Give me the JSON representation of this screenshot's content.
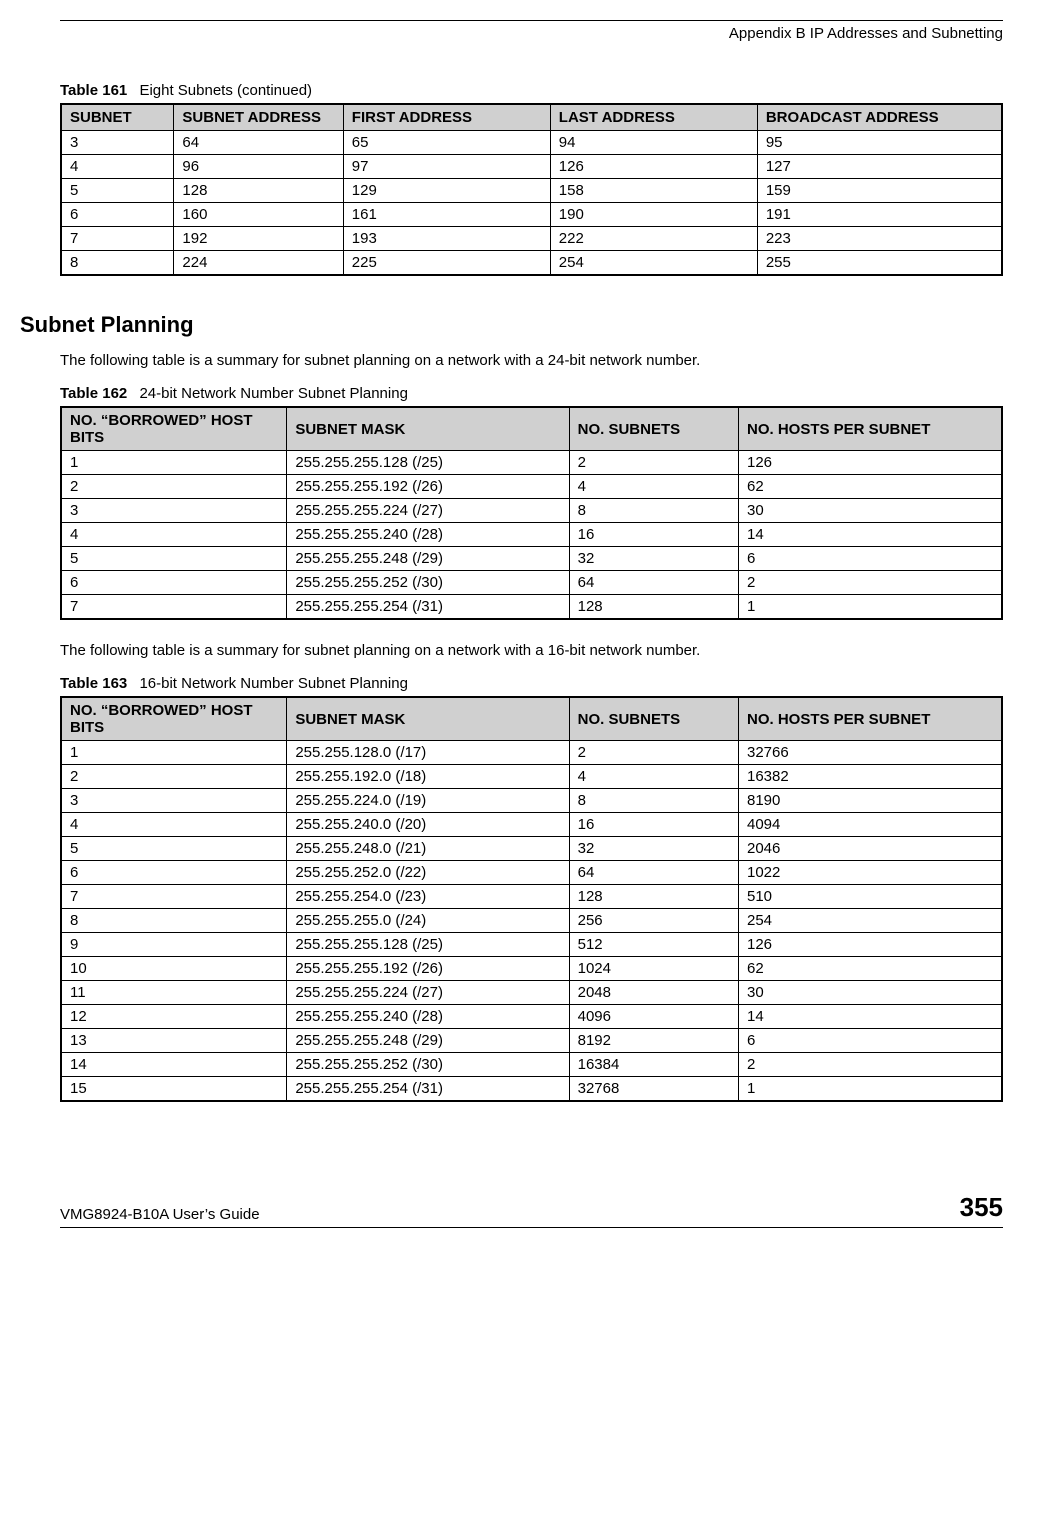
{
  "header": {
    "title": "Appendix B IP Addresses and Subnetting"
  },
  "table161": {
    "label": "Table 161",
    "title": "Eight Subnets (continued)",
    "columns": [
      "SUBNET",
      "SUBNET ADDRESS",
      "FIRST ADDRESS",
      "LAST ADDRESS",
      "BROADCAST ADDRESS"
    ],
    "rows": [
      [
        "3",
        "64",
        "65",
        "94",
        "95"
      ],
      [
        "4",
        "96",
        "97",
        "126",
        "127"
      ],
      [
        "5",
        "128",
        "129",
        "158",
        "159"
      ],
      [
        "6",
        "160",
        "161",
        "190",
        "191"
      ],
      [
        "7",
        "192",
        "193",
        "222",
        "223"
      ],
      [
        "8",
        "224",
        "225",
        "254",
        "255"
      ]
    ]
  },
  "section": {
    "heading": "Subnet Planning"
  },
  "para1": "The following table is a summary for subnet planning on a network with a 24-bit network number.",
  "table162": {
    "label": "Table 162",
    "title": "24-bit Network Number Subnet Planning",
    "columns": [
      "NO. “BORROWED” HOST BITS",
      "SUBNET MASK",
      "NO. SUBNETS",
      "NO. HOSTS PER SUBNET"
    ],
    "rows": [
      [
        "1",
        "255.255.255.128 (/25)",
        "2",
        "126"
      ],
      [
        "2",
        "255.255.255.192 (/26)",
        "4",
        "62"
      ],
      [
        "3",
        "255.255.255.224 (/27)",
        "8",
        "30"
      ],
      [
        "4",
        "255.255.255.240 (/28)",
        "16",
        "14"
      ],
      [
        "5",
        "255.255.255.248 (/29)",
        "32",
        "6"
      ],
      [
        "6",
        "255.255.255.252 (/30)",
        "64",
        "2"
      ],
      [
        "7",
        "255.255.255.254 (/31)",
        "128",
        "1"
      ]
    ]
  },
  "para2": "The following table is a summary for subnet planning on a network with a 16-bit network number.",
  "table163": {
    "label": "Table 163",
    "title": "16-bit Network Number Subnet Planning",
    "columns": [
      "NO. “BORROWED” HOST BITS",
      "SUBNET MASK",
      "NO. SUBNETS",
      "NO. HOSTS PER SUBNET"
    ],
    "rows": [
      [
        "1",
        "255.255.128.0 (/17)",
        "2",
        "32766"
      ],
      [
        "2",
        "255.255.192.0 (/18)",
        "4",
        "16382"
      ],
      [
        "3",
        "255.255.224.0 (/19)",
        "8",
        "8190"
      ],
      [
        "4",
        "255.255.240.0 (/20)",
        "16",
        "4094"
      ],
      [
        "5",
        "255.255.248.0 (/21)",
        "32",
        "2046"
      ],
      [
        "6",
        "255.255.252.0 (/22)",
        "64",
        "1022"
      ],
      [
        "7",
        "255.255.254.0 (/23)",
        "128",
        "510"
      ],
      [
        "8",
        "255.255.255.0 (/24)",
        "256",
        "254"
      ],
      [
        "9",
        "255.255.255.128 (/25)",
        "512",
        "126"
      ],
      [
        "10",
        "255.255.255.192 (/26)",
        "1024",
        "62"
      ],
      [
        "11",
        "255.255.255.224 (/27)",
        "2048",
        "30"
      ],
      [
        "12",
        "255.255.255.240 (/28)",
        "4096",
        "14"
      ],
      [
        "13",
        "255.255.255.248 (/29)",
        "8192",
        "6"
      ],
      [
        "14",
        "255.255.255.252 (/30)",
        "16384",
        "2"
      ],
      [
        "15",
        "255.255.255.254 (/31)",
        "32768",
        "1"
      ]
    ]
  },
  "footer": {
    "guide": "VMG8924-B10A User’s Guide",
    "page": "355"
  }
}
